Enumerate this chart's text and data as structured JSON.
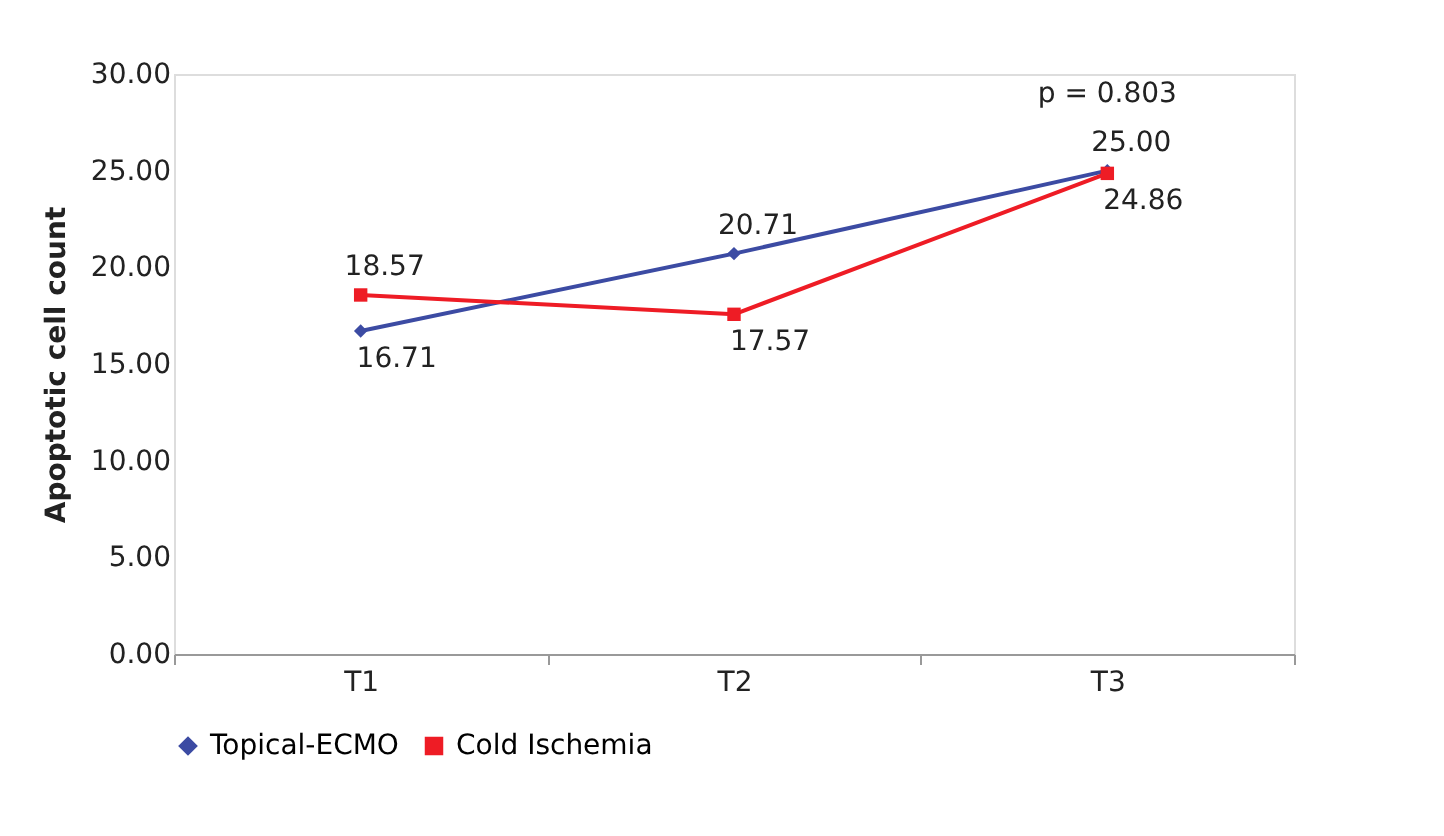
{
  "chart_data": {
    "type": "line",
    "categories": [
      "T1",
      "T2",
      "T3"
    ],
    "ylabel": "Apoptotic cell count",
    "ylim": [
      0,
      30
    ],
    "yticks": [
      {
        "value": 0,
        "label": "0.00"
      },
      {
        "value": 5,
        "label": "5.00"
      },
      {
        "value": 10,
        "label": "10.00"
      },
      {
        "value": 15,
        "label": "15.00"
      },
      {
        "value": 20,
        "label": "20.00"
      },
      {
        "value": 25,
        "label": "25.00"
      },
      {
        "value": 30,
        "label": "30.00"
      }
    ],
    "series": [
      {
        "name": "Topical-ECMO",
        "color": "#3c4ba3",
        "marker": "diamond",
        "values": [
          16.71,
          20.71,
          25.0
        ],
        "value_labels": [
          "16.71",
          "20.71",
          "25.00"
        ]
      },
      {
        "name": "Cold Ischemia",
        "color": "#ee1c25",
        "marker": "square",
        "values": [
          18.57,
          17.57,
          24.86
        ],
        "value_labels": [
          "18.57",
          "17.57",
          "24.86"
        ]
      }
    ],
    "annotations": [
      "p = 0.803"
    ],
    "legend": "bottom",
    "grid": false,
    "line_style": "solid"
  }
}
